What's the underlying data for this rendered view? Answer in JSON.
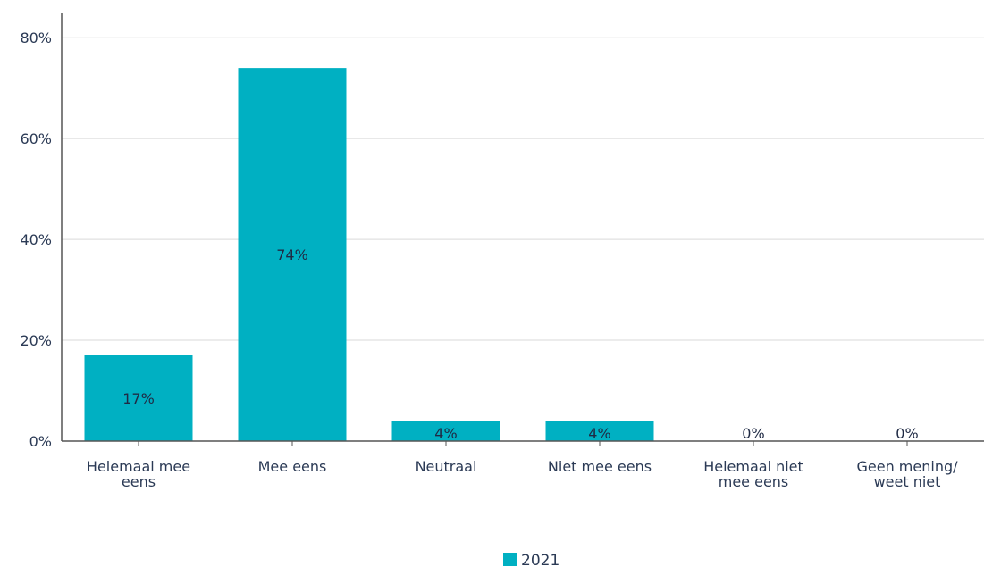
{
  "chart_data": {
    "type": "bar",
    "categories": [
      [
        "Helemaal mee",
        "eens"
      ],
      [
        "Mee eens"
      ],
      [
        "Neutraal"
      ],
      [
        "Niet mee eens"
      ],
      [
        "Helemaal niet",
        "mee eens"
      ],
      [
        "Geen mening/",
        "weet niet"
      ]
    ],
    "series": [
      {
        "name": "2021",
        "values": [
          17,
          74,
          4,
          4,
          0,
          0
        ],
        "labels": [
          "17%",
          "74%",
          "4%",
          "4%",
          "0%",
          "0%"
        ],
        "color": "#00b0c2"
      }
    ],
    "ylim": [
      0,
      85
    ],
    "yticks": [
      0,
      20,
      40,
      60,
      80
    ],
    "ytick_labels": [
      "0%",
      "20%",
      "40%",
      "60%",
      "80%"
    ],
    "grid": true,
    "legend_position": "bottom-center",
    "title": "",
    "xlabel": "",
    "ylabel": ""
  }
}
